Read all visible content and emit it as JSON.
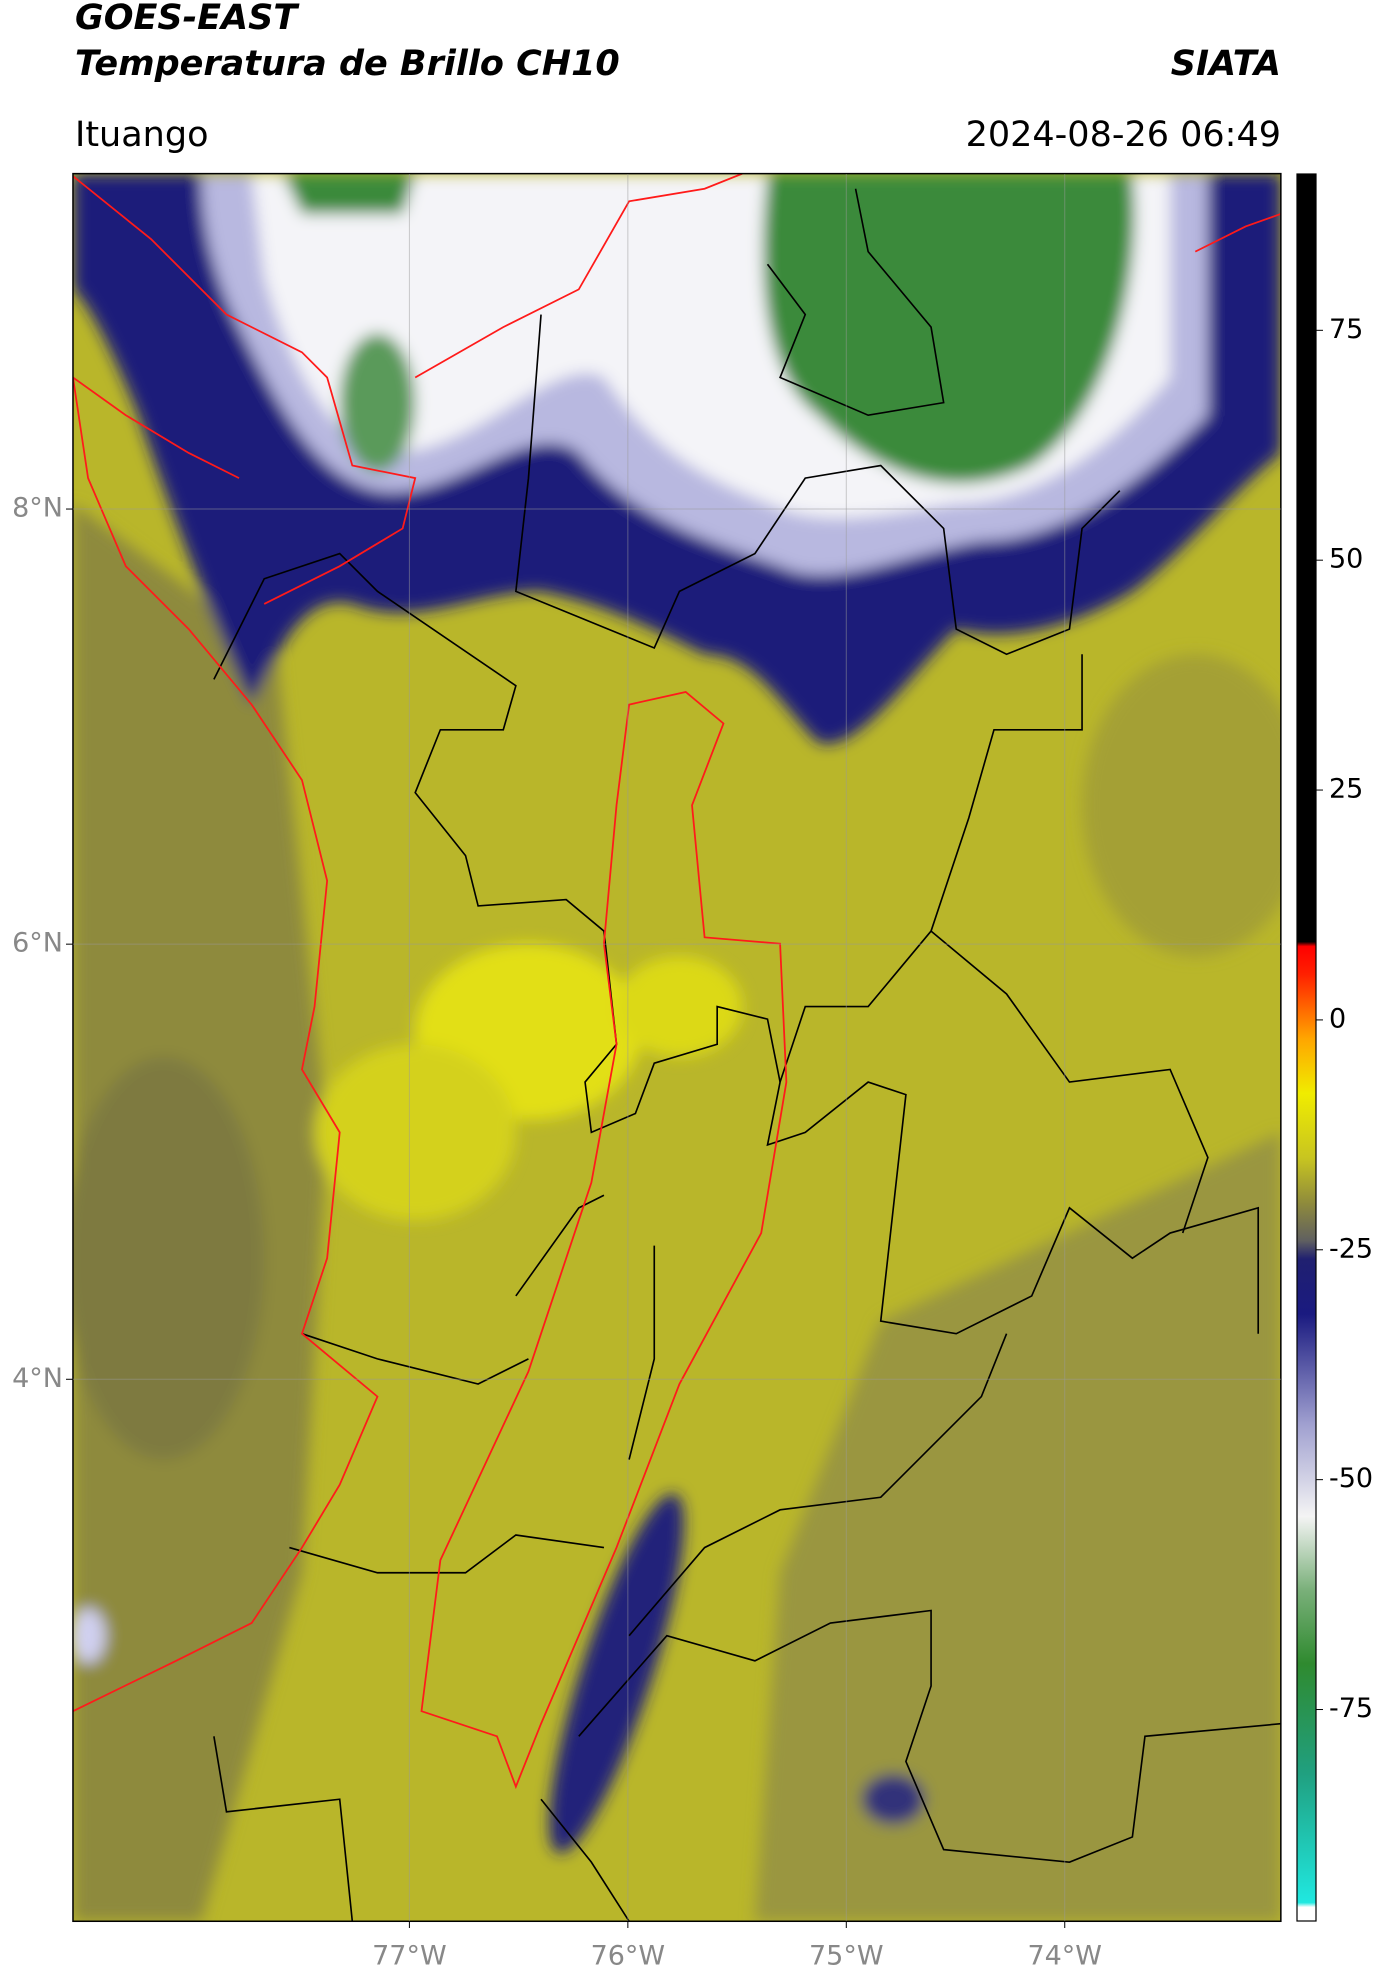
{
  "chart_data": {
    "type": "map",
    "title": "GOES-EAST",
    "subtitle": "Temperatura de Brillo CH10",
    "source": "SIATA",
    "location": "Ituango",
    "timestamp": "2024-08-26 06:49",
    "xlim": [
      -78.54,
      -73.01
    ],
    "ylim": [
      1.51,
      9.54
    ],
    "xticks": [
      {
        "value": -77,
        "label": "77°W"
      },
      {
        "value": -76,
        "label": "76°W"
      },
      {
        "value": -75,
        "label": "75°W"
      },
      {
        "value": -74,
        "label": "74°W"
      }
    ],
    "yticks": [
      {
        "value": 8,
        "label": "8°N"
      },
      {
        "value": 6,
        "label": "6°N"
      },
      {
        "value": 4,
        "label": "4°N"
      }
    ],
    "grid": true,
    "colorbar": {
      "lim": [
        -98,
        92
      ],
      "ticks": [
        75,
        50,
        25,
        0,
        -25,
        -50,
        -75
      ],
      "stops": [
        {
          "value": -98,
          "color": "#ffffff"
        },
        {
          "value": -96.5,
          "color": "#ffffff"
        },
        {
          "value": -96,
          "color": "#20e8e0"
        },
        {
          "value": -82,
          "color": "#20a080"
        },
        {
          "value": -70,
          "color": "#2f8a2f"
        },
        {
          "value": -62,
          "color": "#7ab07a"
        },
        {
          "value": -54,
          "color": "#f4f4f4"
        },
        {
          "value": -44,
          "color": "#a0a0d0"
        },
        {
          "value": -32,
          "color": "#1a1a80"
        },
        {
          "value": -26,
          "color": "#202070"
        },
        {
          "value": -24,
          "color": "#606060"
        },
        {
          "value": -20,
          "color": "#8e8a3c"
        },
        {
          "value": -15,
          "color": "#c8c520"
        },
        {
          "value": -8,
          "color": "#f0ec00"
        },
        {
          "value": -2,
          "color": "#ffa500"
        },
        {
          "value": 5,
          "color": "#ff2000"
        },
        {
          "value": 8,
          "color": "#ff0000"
        },
        {
          "value": 8.5,
          "color": "#000000"
        },
        {
          "value": 92,
          "color": "#000000"
        }
      ]
    }
  }
}
